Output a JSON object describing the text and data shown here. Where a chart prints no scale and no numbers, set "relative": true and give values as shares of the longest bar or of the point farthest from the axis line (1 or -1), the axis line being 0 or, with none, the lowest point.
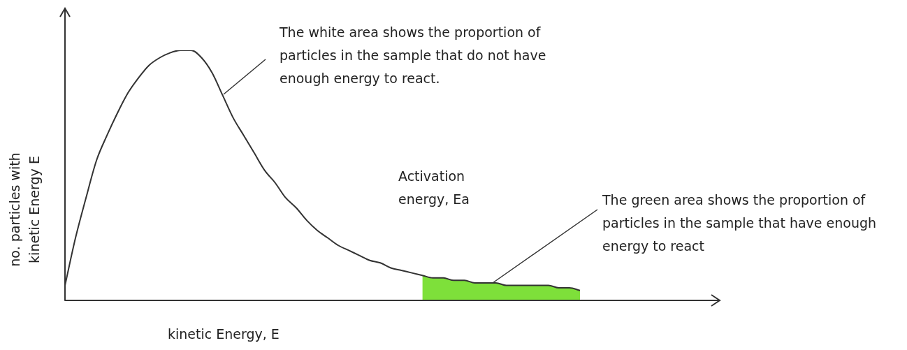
{
  "chart_data": {
    "type": "line",
    "relative": true,
    "xlabel": "kinetic Energy, E",
    "ylabel": "no. particles with kinetic Energy E",
    "categories": [
      null,
      null,
      null,
      null,
      null,
      null,
      null,
      null,
      null,
      null,
      null,
      null,
      null,
      null,
      null,
      null,
      null,
      null,
      null,
      null,
      null,
      null,
      null,
      null,
      null,
      null,
      null,
      null,
      null,
      null,
      null,
      null,
      null,
      null,
      null,
      null,
      null,
      null,
      null,
      null,
      null,
      null,
      null,
      null,
      null,
      null,
      null,
      null,
      null,
      null
    ],
    "series": [
      {
        "type": "line",
        "color": "#333333",
        "values": [
          0.06,
          0.25,
          0.41,
          0.56,
          0.66,
          0.75,
          0.83,
          0.89,
          0.94,
          0.97,
          0.99,
          1.0,
          1.0,
          0.97,
          0.91,
          0.82,
          0.73,
          0.66,
          0.59,
          0.52,
          0.47,
          0.41,
          0.37,
          0.32,
          0.28,
          0.25,
          0.22,
          0.2,
          0.18,
          0.16,
          0.15,
          0.13,
          0.12,
          0.11,
          0.1,
          0.09,
          0.09,
          0.08,
          0.08,
          0.07,
          0.07,
          0.07,
          0.06,
          0.06,
          0.06,
          0.06,
          0.06,
          0.05,
          0.05,
          0.04
        ]
      },
      {
        "type": "area",
        "color": "#7ee03a",
        "values": [
          null,
          null,
          null,
          null,
          null,
          null,
          null,
          null,
          null,
          null,
          null,
          null,
          null,
          null,
          null,
          null,
          null,
          null,
          null,
          null,
          null,
          null,
          null,
          null,
          null,
          null,
          null,
          null,
          null,
          null,
          null,
          null,
          null,
          null,
          0.1,
          0.09,
          0.09,
          0.08,
          0.08,
          0.07,
          0.07,
          0.07,
          0.06,
          0.06,
          0.06,
          0.06,
          0.06,
          0.05,
          0.05,
          0.04
        ]
      }
    ],
    "annotations": [
      "The white area shows the proportion of particles in the sample that do not have enough energy to react.",
      "Activation energy, Ea",
      "The green area shows the proportion of particles in the sample that have enough energy to react"
    ],
    "legend": false
  }
}
